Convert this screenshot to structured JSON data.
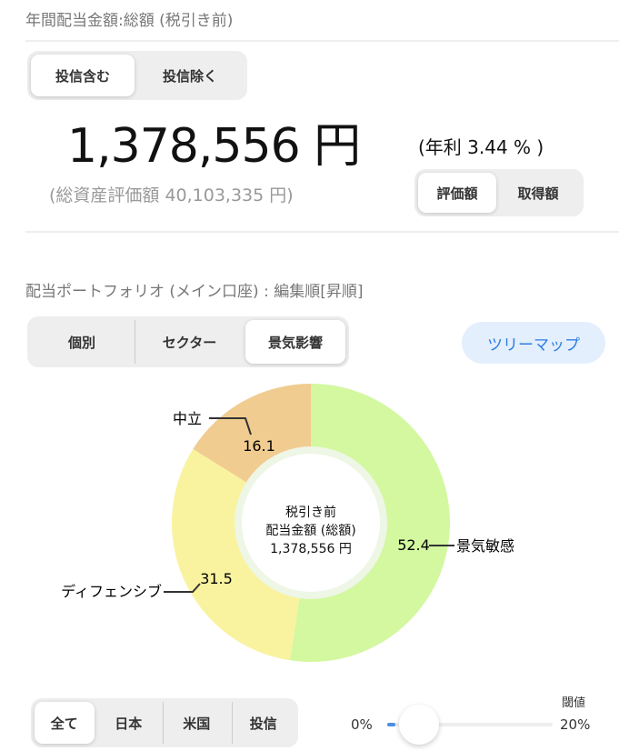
{
  "header": {
    "title": "年間配当金額:総額 (税引き前)"
  },
  "fund_toggle": {
    "options": [
      "投信含む",
      "投信除く"
    ],
    "selected": "投信含む"
  },
  "summary": {
    "amount": "1,378,556 円",
    "yield": "(年利 3.44 % )",
    "total_assets": "(総資産評価額 40,103,335 円)"
  },
  "basis_toggle": {
    "options": [
      "評価額",
      "取得額"
    ],
    "selected": "評価額"
  },
  "portfolio": {
    "title": "配当ポートフォリオ (メイン口座) : 編集順[昇順]",
    "tabs": [
      "個別",
      "セクター",
      "景気影響"
    ],
    "selected": "景気影響",
    "treemap_label": "ツリーマップ"
  },
  "chart_data": {
    "type": "pie",
    "center_label": [
      "税引き前",
      "配当金額 (総額)",
      "1,378,556 円"
    ],
    "slices": [
      {
        "name": "景気敏感",
        "value": 52.4,
        "label": "52.4",
        "color": "#d3f8a0"
      },
      {
        "name": "ディフェンシブ",
        "value": 31.5,
        "label": "31.5",
        "color": "#f9f39f"
      },
      {
        "name": "中立",
        "value": 16.1,
        "label": "16.1",
        "color": "#f1cc90"
      }
    ]
  },
  "region_filter": {
    "options": [
      "全て",
      "日本",
      "米国",
      "投信"
    ],
    "selected": "全て"
  },
  "threshold": {
    "label": "閾値",
    "min_label": "0%",
    "max_label": "20%",
    "value_percent": 1,
    "accent": "#4a90e2"
  }
}
